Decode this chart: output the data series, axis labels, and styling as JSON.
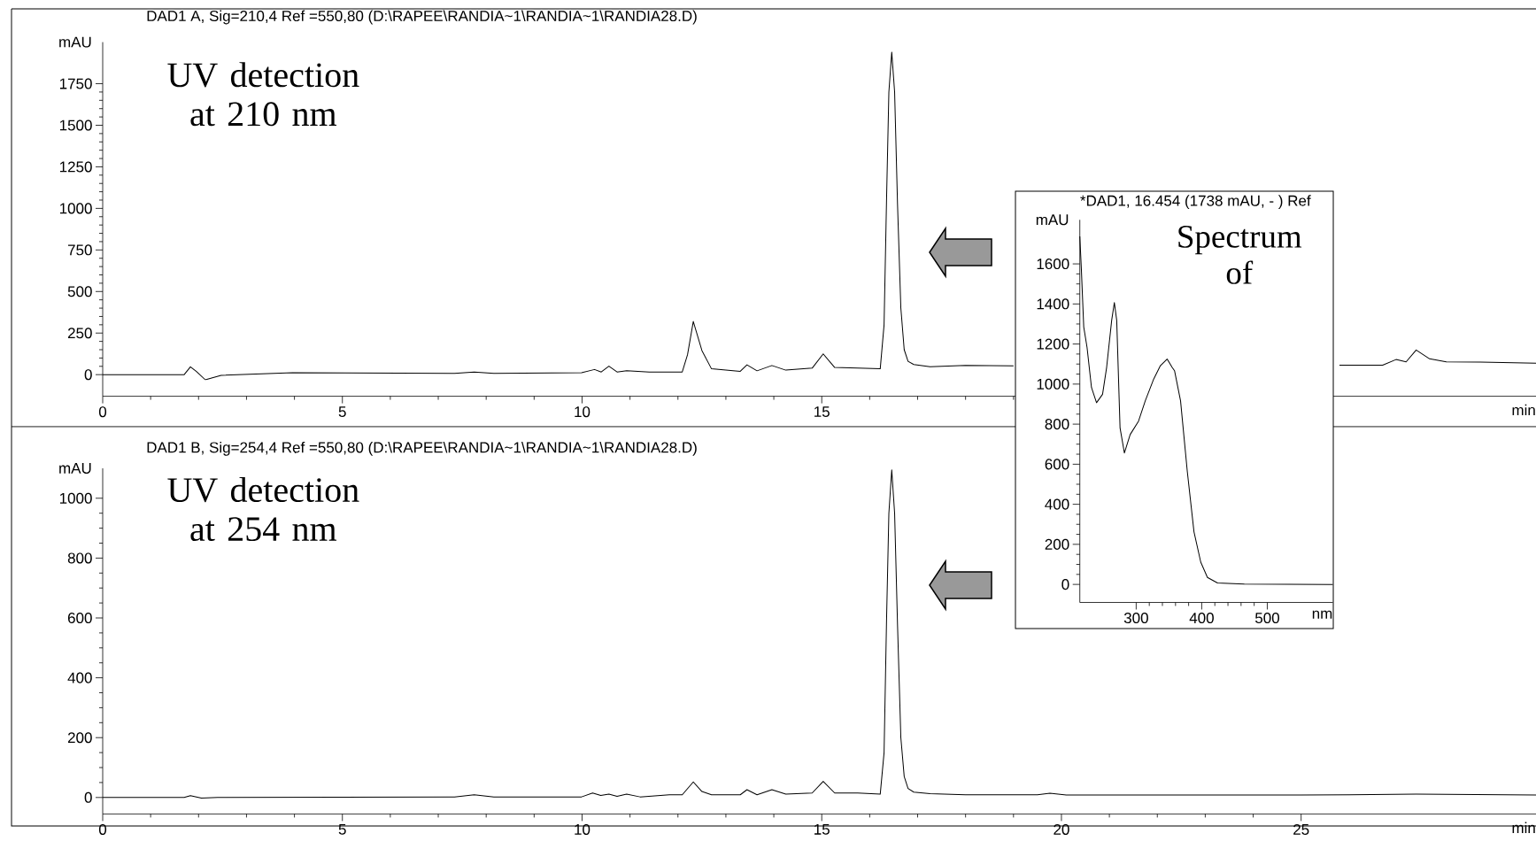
{
  "chart_data": [
    {
      "type": "line",
      "title": "DAD1 A, Sig=210,4 Ref =550,80 (D:\\RAPEE\\RANDIA~1\\RANDIA~1\\RANDIA28.D)",
      "xlabel": "min",
      "ylabel": "mAU",
      "x": [
        0,
        1.7,
        1.83,
        1.95,
        2.14,
        2.47,
        3.96,
        7.34,
        7.75,
        8.16,
        9.99,
        10.26,
        10.4,
        10.56,
        10.73,
        10.93,
        11.4,
        12.09,
        12.2,
        12.32,
        12.5,
        12.7,
        13.3,
        13.44,
        13.65,
        13.96,
        14.25,
        14.8,
        15.03,
        15.27,
        15.75,
        16.22,
        16.3,
        16.35,
        16.4,
        16.46,
        16.52,
        16.58,
        16.65,
        16.72,
        16.8,
        16.92,
        17.26,
        18.0,
        19.0,
        22,
        25.8,
        26.7,
        26.98,
        27.19,
        27.4,
        27.68,
        28.03,
        28.74,
        29.9
      ],
      "series": [
        {
          "color": "#000000",
          "values": [
            0,
            0,
            47,
            20,
            -31,
            -4,
            12,
            8,
            16,
            8,
            12,
            31,
            16,
            51,
            16,
            23,
            16,
            16,
            120,
            320,
            145,
            35,
            20,
            59,
            23,
            55,
            27,
            39,
            125,
            43,
            39,
            35,
            300,
            1030,
            1700,
            1940,
            1700,
            1030,
            400,
            150,
            80,
            61,
            47,
            55,
            53,
            null,
            57,
            57,
            91,
            77,
            148,
            95,
            77,
            75,
            69
          ]
        }
      ],
      "xlim": [
        0,
        29.9
      ],
      "ylim": [
        -130,
        2000
      ],
      "xticks": [
        0,
        5,
        10,
        15,
        {
          "value": 20,
          "label": null
        },
        {
          "value": 25,
          "label": null
        }
      ],
      "yticks": [
        0,
        250,
        500,
        750,
        1000,
        1250,
        1500,
        1750
      ],
      "annotations": [
        "UV detection at 210 nm"
      ]
    },
    {
      "type": "line",
      "title": "DAD1 B, Sig=254,4 Ref =550,80 (D:\\RAPEE\\RANDIA~1\\RANDIA~1\\RANDIA28.D)",
      "xlabel": "min",
      "ylabel": "mAU",
      "x": [
        0,
        1.7,
        1.83,
        2.06,
        2.4,
        7.34,
        7.75,
        8.16,
        9.99,
        10.22,
        10.39,
        10.56,
        10.73,
        10.93,
        11.21,
        11.82,
        12.09,
        12.32,
        12.5,
        12.7,
        13.3,
        13.44,
        13.65,
        13.96,
        14.25,
        14.8,
        15.03,
        15.27,
        15.75,
        16.22,
        16.3,
        16.35,
        16.4,
        16.46,
        16.52,
        16.58,
        16.65,
        16.72,
        16.8,
        16.92,
        17.26,
        18.0,
        19.5,
        19.76,
        20.1,
        25,
        27.4,
        29.9
      ],
      "series": [
        {
          "color": "#000000",
          "values": [
            0,
            0,
            6,
            -2,
            0,
            2,
            9,
            2,
            2,
            15,
            7,
            11,
            4,
            11,
            2,
            9,
            9,
            52,
            20,
            9,
            9,
            26,
            9,
            26,
            11,
            15,
            54,
            15,
            15,
            11,
            150,
            580,
            950,
            1095,
            950,
            580,
            200,
            70,
            30,
            18,
            13,
            9,
            9,
            14,
            8,
            8,
            11,
            8
          ]
        }
      ],
      "xlim": [
        0,
        29.9
      ],
      "ylim": [
        -55,
        1100
      ],
      "xticks": [
        0,
        5,
        10,
        15,
        20,
        25
      ],
      "yticks": [
        0,
        200,
        400,
        600,
        800,
        1000
      ],
      "annotations": [
        "UV detection at 254 nm"
      ]
    },
    {
      "type": "line",
      "title": "*DAD1, 16.454 (1738 mAU, - ) Ref",
      "xlabel": "nm",
      "ylabel": "mAU",
      "x": [
        214,
        216.4,
        220,
        225,
        231.8,
        239.5,
        248.7,
        254.9,
        262.6,
        266.7,
        270.3,
        275.4,
        282,
        290.8,
        303.6,
        313.8,
        326.7,
        336.9,
        347.2,
        354.9,
        358.5,
        367.7,
        378,
        388.2,
        398.5,
        408.7,
        424.1,
        465,
        600
      ],
      "series": [
        {
          "color": "#000000",
          "values": [
            1737,
            1570,
            1285,
            1184,
            983,
            907,
            949,
            1083,
            1318,
            1407,
            1318,
            781,
            656,
            748,
            815,
            916,
            1025,
            1092,
            1125,
            1083,
            1067,
            916,
            563,
            262,
            111,
            35,
            7,
            2,
            0
          ]
        }
      ],
      "xlim": [
        214,
        600
      ],
      "ylim": [
        -90,
        1820
      ],
      "xticks": [
        300,
        400,
        500
      ],
      "yticks": [
        0,
        200,
        400,
        600,
        800,
        1000,
        1200,
        1400,
        1600
      ],
      "annotations": [
        "Spectrum of"
      ]
    }
  ]
}
